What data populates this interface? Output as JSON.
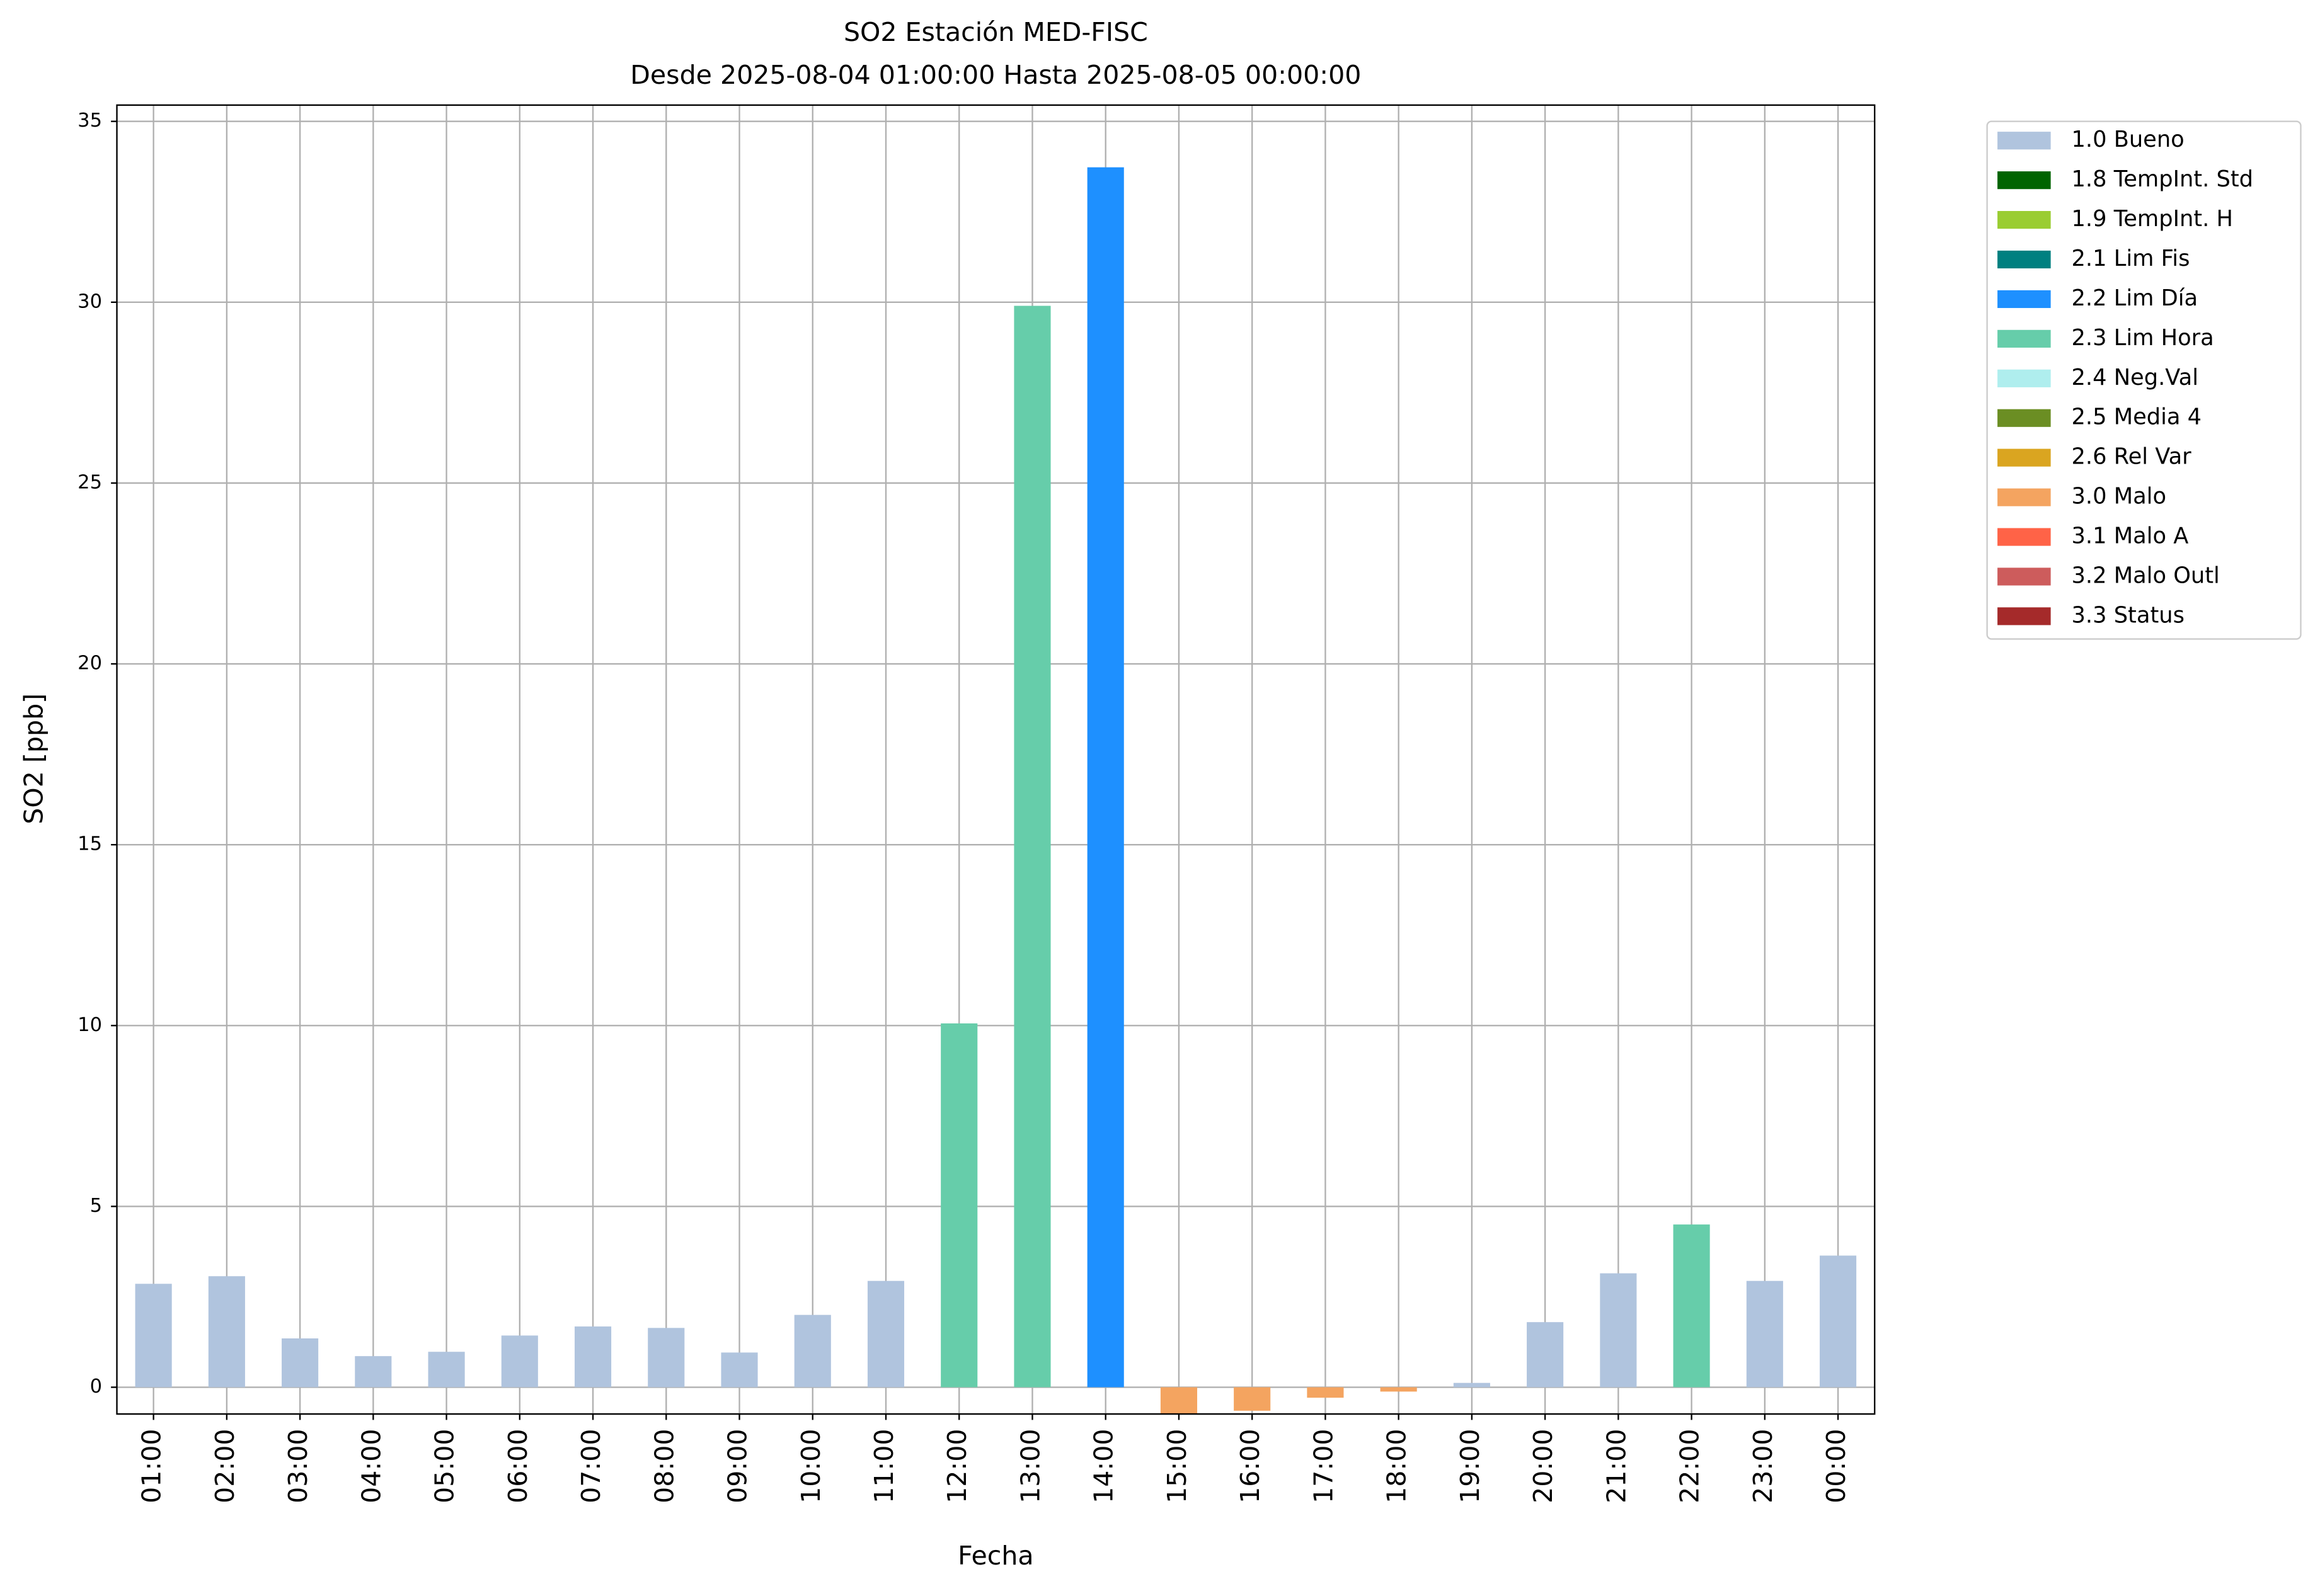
{
  "chart_data": {
    "type": "bar",
    "title": "SO2 Estación MED-FISC",
    "subtitle": "Desde 2025-08-04 01:00:00 Hasta 2025-08-05 00:00:00",
    "x_label": "Fecha",
    "y_label": "SO2 [ppb]",
    "categories": [
      "01:00",
      "02:00",
      "03:00",
      "04:00",
      "05:00",
      "06:00",
      "07:00",
      "08:00",
      "09:00",
      "10:00",
      "11:00",
      "12:00",
      "13:00",
      "14:00",
      "15:00",
      "16:00",
      "17:00",
      "18:00",
      "19:00",
      "20:00",
      "21:00",
      "22:00",
      "23:00",
      "00:00"
    ],
    "values": [
      2.86,
      3.07,
      1.35,
      0.86,
      0.98,
      1.43,
      1.68,
      1.64,
      0.96,
      2.0,
      2.94,
      10.06,
      29.9,
      33.73,
      -0.75,
      -0.65,
      -0.29,
      -0.12,
      0.12,
      1.8,
      3.15,
      4.5,
      2.94,
      3.64
    ],
    "colors": [
      "#b0c4de",
      "#b0c4de",
      "#b0c4de",
      "#b0c4de",
      "#b0c4de",
      "#b0c4de",
      "#b0c4de",
      "#b0c4de",
      "#b0c4de",
      "#b0c4de",
      "#b0c4de",
      "#66cdaa",
      "#66cdaa",
      "#1e90ff",
      "#f4a460",
      "#f4a460",
      "#f4a460",
      "#f4a460",
      "#b0c4de",
      "#b0c4de",
      "#b0c4de",
      "#66cdaa",
      "#b0c4de",
      "#b0c4de"
    ],
    "legend": [
      {
        "name": "1.0 Bueno",
        "color": "#b0c4de"
      },
      {
        "name": "1.8 TempInt. Std",
        "color": "#006400"
      },
      {
        "name": "1.9 TempInt. H",
        "color": "#9acd32"
      },
      {
        "name": "2.1 Lim Fis",
        "color": "#008080"
      },
      {
        "name": "2.2 Lim Día",
        "color": "#1e90ff"
      },
      {
        "name": "2.3 Lim Hora",
        "color": "#66cdaa"
      },
      {
        "name": "2.4 Neg.Val",
        "color": "#afeeee"
      },
      {
        "name": "2.5 Media 4",
        "color": "#6b8e23"
      },
      {
        "name": "2.6 Rel Var",
        "color": "#daa520"
      },
      {
        "name": "3.0 Malo",
        "color": "#f4a460"
      },
      {
        "name": "3.1 Malo A",
        "color": "#ff6347"
      },
      {
        "name": "3.2 Malo Outl",
        "color": "#cd5c5c"
      },
      {
        "name": "3.3 Status",
        "color": "#a52a2a"
      }
    ],
    "legend_position": "outside-upper-right",
    "ylim": [
      -0.74,
      35.45
    ],
    "yticks": [
      0,
      5,
      10,
      15,
      20,
      25,
      30,
      35
    ],
    "grid": true
  }
}
